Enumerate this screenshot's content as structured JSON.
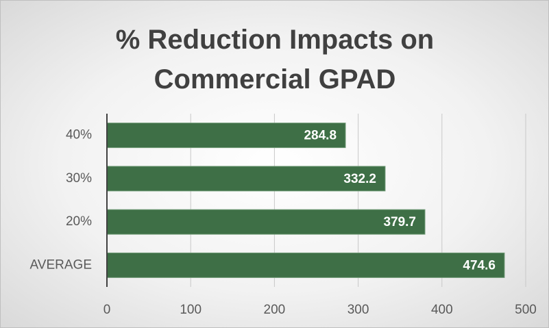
{
  "chart_data": {
    "type": "bar",
    "orientation": "horizontal",
    "title": "% Reduction Impacts on Commercial GPAD",
    "categories": [
      "40%",
      "30%",
      "20%",
      "AVERAGE"
    ],
    "values": [
      284.8,
      332.2,
      379.7,
      474.6
    ],
    "color": "#3e6f46",
    "xlim": [
      0,
      500
    ],
    "xticks": [
      0,
      100,
      200,
      300,
      400,
      500
    ],
    "grid": true
  }
}
